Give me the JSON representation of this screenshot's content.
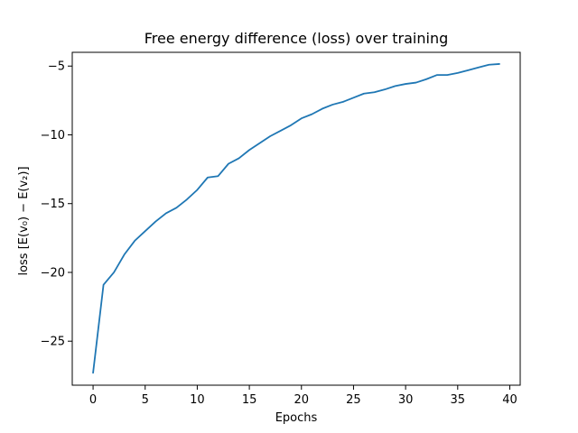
{
  "chart_data": {
    "type": "line",
    "title": "Free energy difference (loss) over training",
    "xlabel": "Epochs",
    "ylabel": "loss [E(v₀) − E(v₂)]",
    "xlim": [
      -2,
      41
    ],
    "ylim": [
      -28.2,
      -4.0
    ],
    "grid": false,
    "x_ticks": [
      0,
      5,
      10,
      15,
      20,
      25,
      30,
      35,
      40
    ],
    "x_tick_labels": [
      "0",
      "5",
      "10",
      "15",
      "20",
      "25",
      "30",
      "35",
      "40"
    ],
    "y_ticks": [
      -25,
      -20,
      -15,
      -10,
      -5
    ],
    "y_tick_labels": [
      "−25",
      "−20",
      "−15",
      "−10",
      "−5"
    ],
    "series": [
      {
        "color": "#1f77b4",
        "x": [
          0,
          1,
          2,
          3,
          4,
          5,
          6,
          7,
          8,
          9,
          10,
          11,
          12,
          13,
          14,
          15,
          16,
          17,
          18,
          19,
          20,
          21,
          22,
          23,
          24,
          25,
          26,
          27,
          28,
          29,
          30,
          31,
          32,
          33,
          34,
          35,
          36,
          37,
          38,
          39
        ],
        "y": [
          -27.3,
          -20.9,
          -20.0,
          -18.7,
          -17.7,
          -17.0,
          -16.3,
          -15.7,
          -15.3,
          -14.7,
          -14.0,
          -13.1,
          -13.0,
          -12.1,
          -11.7,
          -11.1,
          -10.6,
          -10.1,
          -9.7,
          -9.3,
          -8.8,
          -8.5,
          -8.1,
          -7.8,
          -7.6,
          -7.3,
          -7.0,
          -6.9,
          -6.7,
          -6.45,
          -6.3,
          -6.2,
          -5.95,
          -5.65,
          -5.65,
          -5.5,
          -5.3,
          -5.1,
          -4.9,
          -4.85
        ]
      }
    ]
  }
}
